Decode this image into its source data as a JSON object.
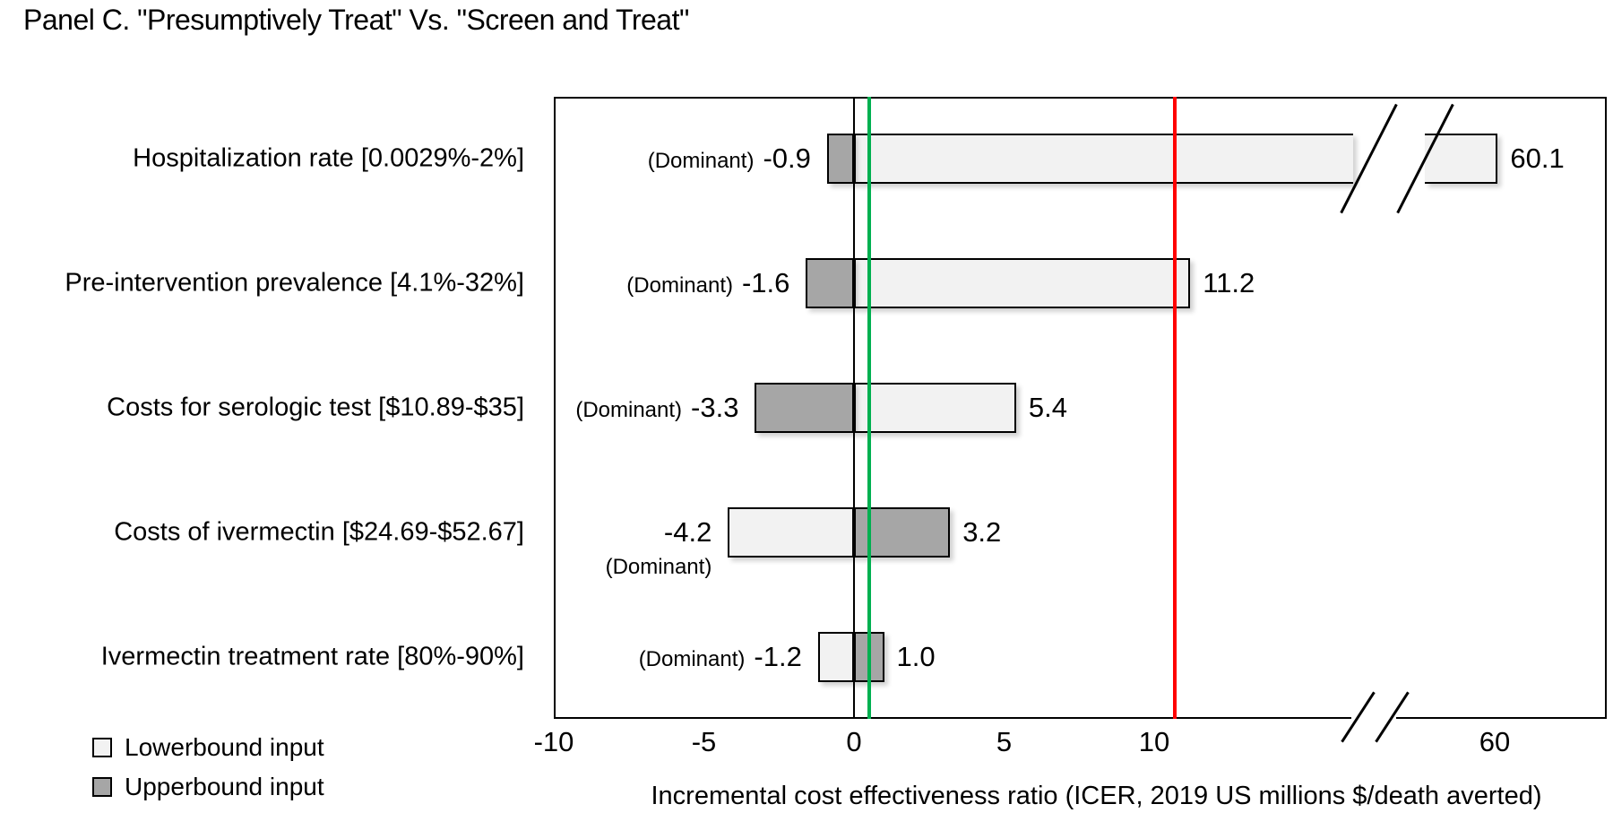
{
  "chart_data": {
    "type": "bar",
    "subtype": "tornado",
    "orientation": "horizontal",
    "title": "Panel C. \"Presumptively Treat\" Vs. \"Screen and Treat\"",
    "xlabel": "Incremental cost effectiveness ratio (ICER, 2019 US millions $/death averted)",
    "x_ticks": [
      {
        "label": "-10",
        "value": -10
      },
      {
        "label": "-5",
        "value": -5
      },
      {
        "label": "0",
        "value": 0
      },
      {
        "label": "5",
        "value": 5
      },
      {
        "label": "10",
        "value": 10
      },
      {
        "label": "60",
        "value": 60
      }
    ],
    "x_axis_break_between": [
      10,
      60
    ],
    "grid": false,
    "legend_position": "bottom-left",
    "legend": [
      {
        "label": "Lowerbound input",
        "color": "#f2f2f2"
      },
      {
        "label": "Upperbound input",
        "color": "#a6a6a6"
      }
    ],
    "reference_lines": [
      {
        "name": "zero-line",
        "value": 0,
        "color": "#000000",
        "width": 2
      },
      {
        "name": "base-case-line",
        "value": 0.5,
        "color": "#00b050",
        "width": 4
      },
      {
        "name": "threshold-line",
        "value": 10.7,
        "color": "#ff0000",
        "width": 4
      }
    ],
    "rows": [
      {
        "label": "Hospitalization rate [0.0029%-2%]",
        "lowerbound_icer": 60.1,
        "upperbound_icer": -0.9,
        "neg_label": {
          "prefix": "(Dominant)",
          "value": "-0.9",
          "stacked": false
        },
        "pos_label": "60.1",
        "bar_crosses_axis_break": true
      },
      {
        "label": "Pre-intervention prevalence [4.1%-32%]",
        "lowerbound_icer": 11.2,
        "upperbound_icer": -1.6,
        "neg_label": {
          "prefix": "(Dominant)",
          "value": "-1.6",
          "stacked": false
        },
        "pos_label": "11.2",
        "bar_crosses_axis_break": false
      },
      {
        "label": "Costs for serologic test [$10.89-$35]",
        "lowerbound_icer": 5.4,
        "upperbound_icer": -3.3,
        "neg_label": {
          "prefix": "(Dominant)",
          "value": "-3.3",
          "stacked": false
        },
        "pos_label": "5.4",
        "bar_crosses_axis_break": false
      },
      {
        "label": "Costs of ivermectin [$24.69-$52.67]",
        "lowerbound_icer": -4.2,
        "upperbound_icer": 3.2,
        "neg_label": {
          "prefix": "(Dominant)",
          "value": "-4.2",
          "stacked": true
        },
        "pos_label": "3.2",
        "bar_crosses_axis_break": false
      },
      {
        "label": "Ivermectin treatment rate [80%-90%]",
        "lowerbound_icer": -1.2,
        "upperbound_icer": 1.0,
        "neg_label": {
          "prefix": "(Dominant)",
          "value": "-1.2",
          "stacked": false
        },
        "pos_label": "1.0",
        "bar_crosses_axis_break": false
      }
    ]
  }
}
